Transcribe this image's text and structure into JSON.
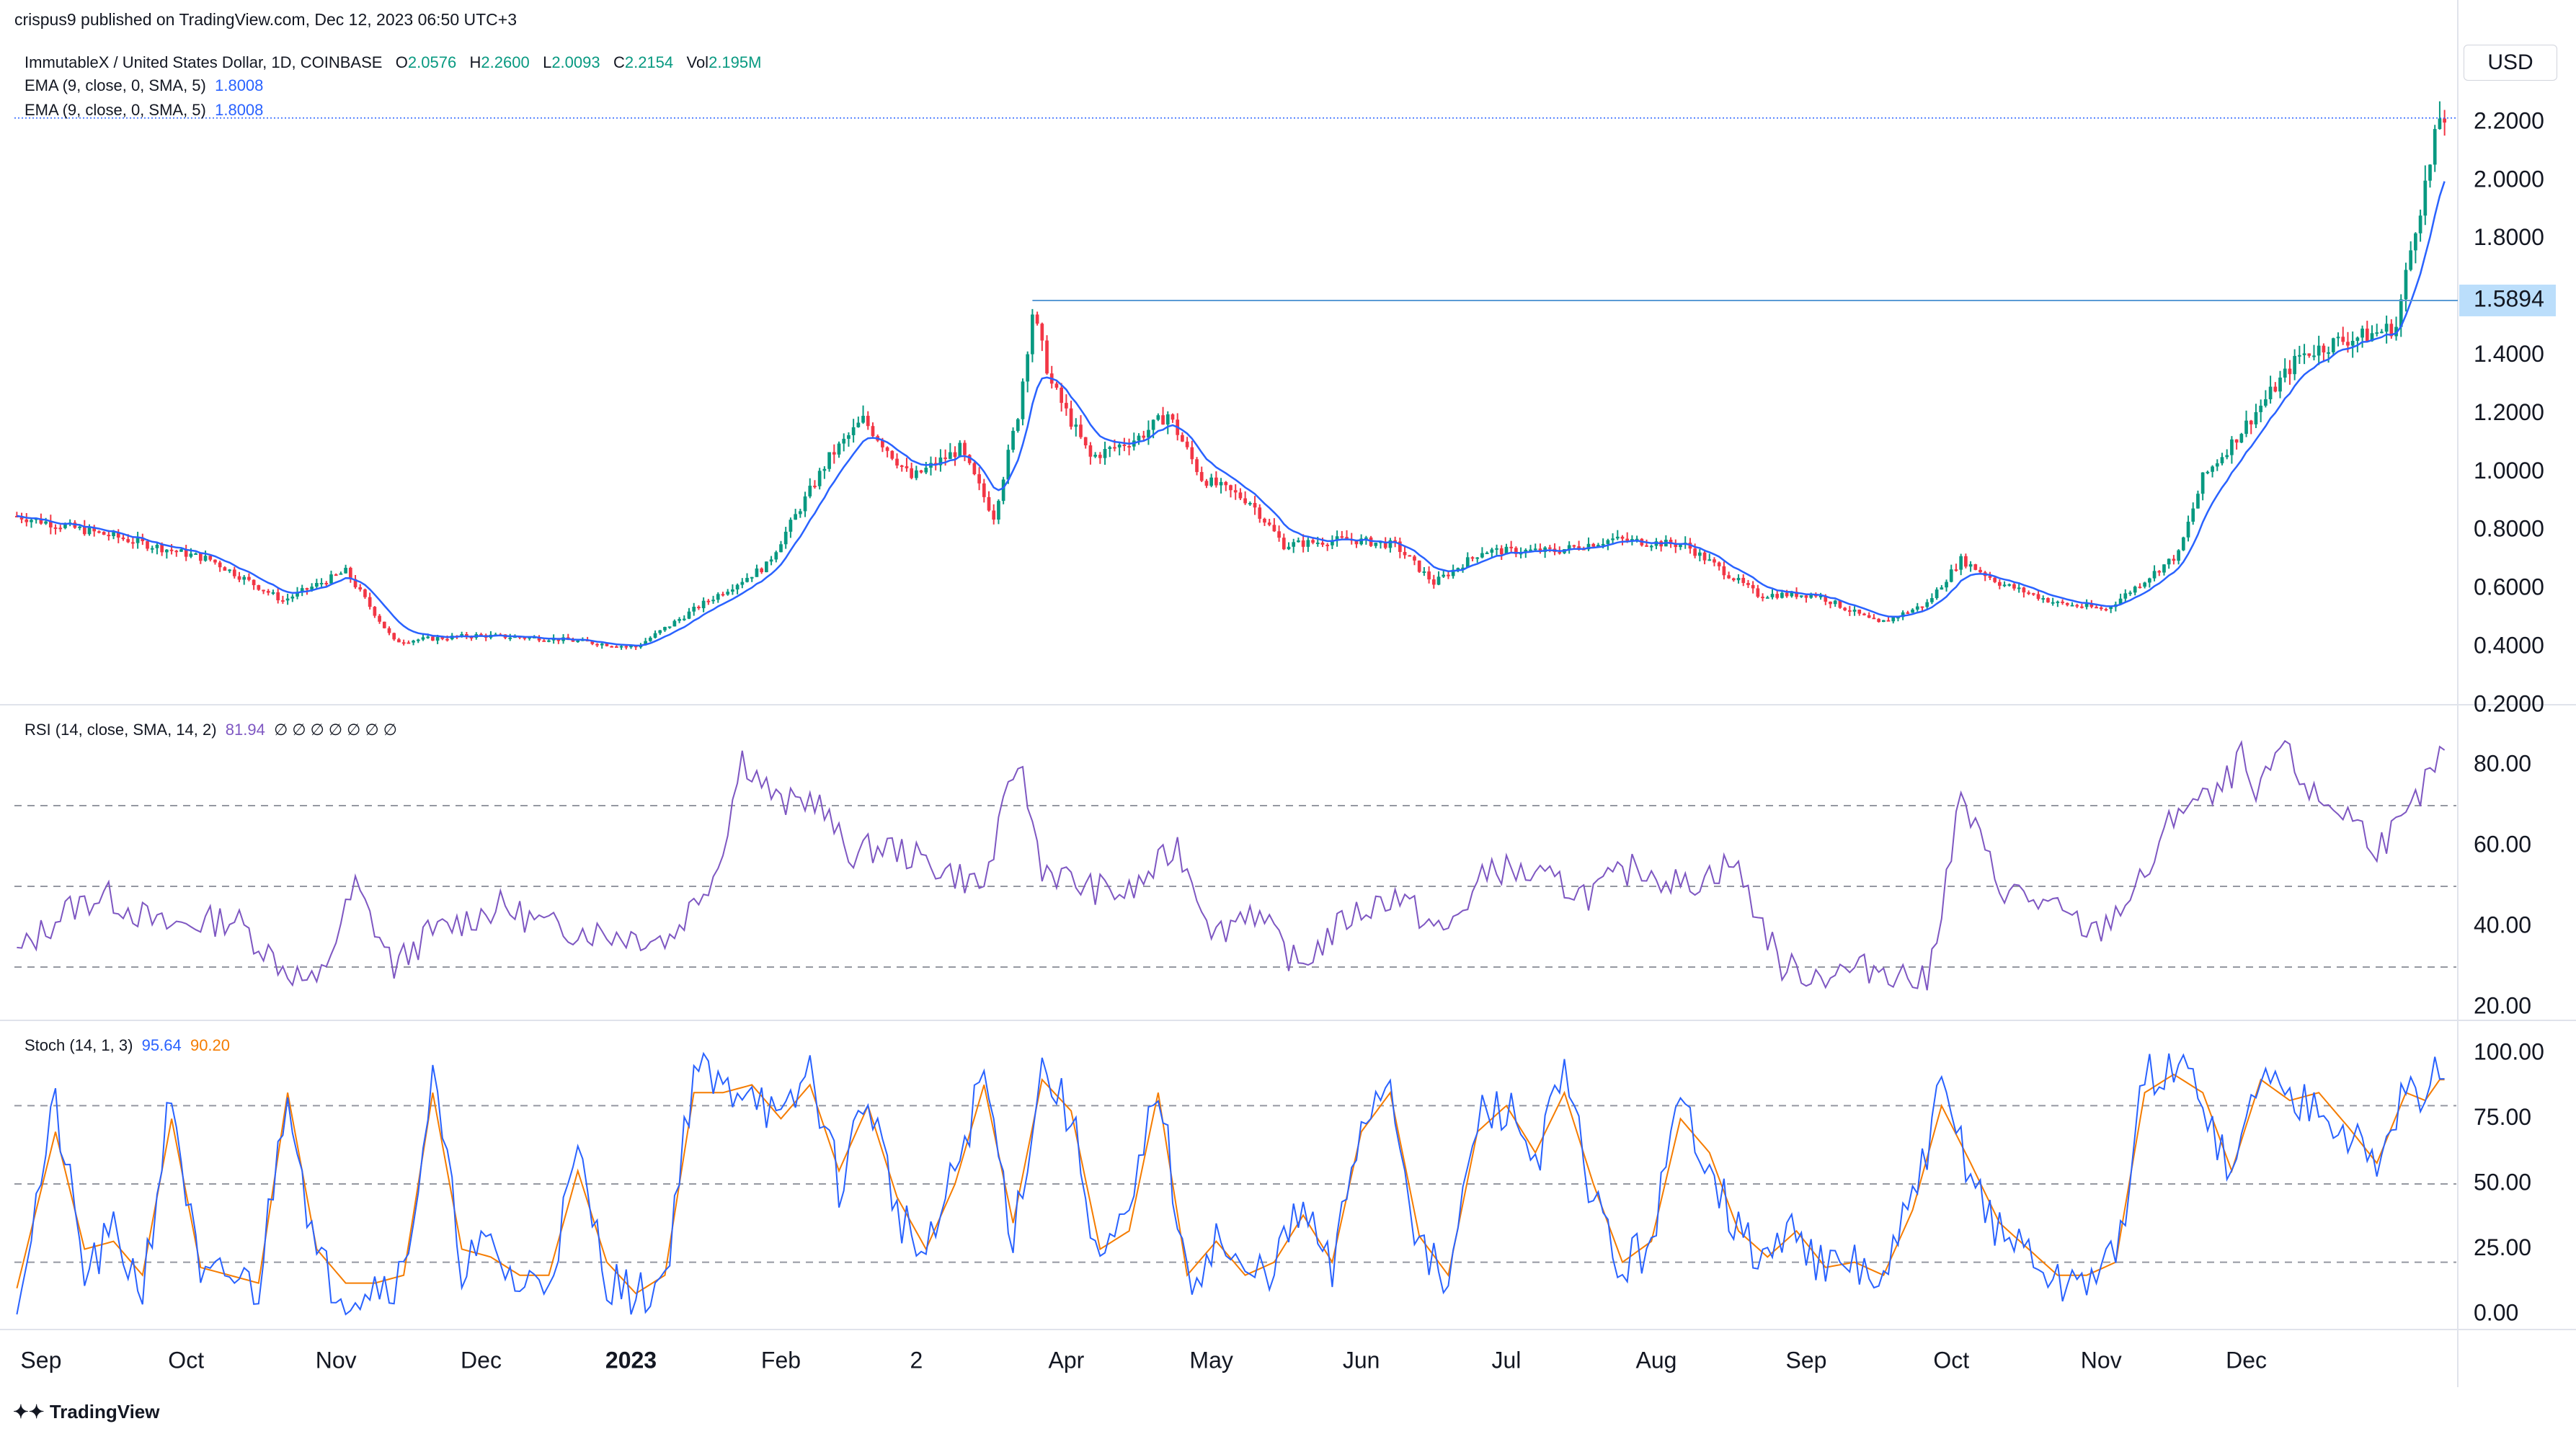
{
  "header": {
    "published": "crispus9 published on TradingView.com, Dec 12, 2023 06:50 UTC+3",
    "symbol": "ImmutableX / United States Dollar, 1D, COINBASE",
    "o_label": "O",
    "o_value": "2.0576",
    "h_label": "H",
    "h_value": "2.2600",
    "l_label": "L",
    "l_value": "2.0093",
    "c_label": "C",
    "c_value": "2.2154",
    "vol_label": "Vol",
    "vol_value": "2.195M",
    "ema1_label": "EMA (9, close, 0, SMA, 5)",
    "ema1_value": "1.8008",
    "ema2_label": "EMA (9, close, 0, SMA, 5)",
    "ema2_value": "1.8008"
  },
  "currency_button": "USD",
  "rsi_header": {
    "label": "RSI (14, close, SMA, 14, 2)",
    "value": "81.94",
    "na": "∅ ∅ ∅ ∅ ∅ ∅ ∅"
  },
  "stoch_header": {
    "label": "Stoch (14, 1, 3)",
    "k_value": "95.64",
    "d_value": "90.20"
  },
  "brand": "TradingView",
  "colors": {
    "up": "#089981",
    "down": "#f23645",
    "ema": "#2962ff",
    "rsi": "#7e57c2",
    "stoch_k": "#2962ff",
    "stoch_d": "#f57c00",
    "level_line": "#5b9bd5",
    "level_badge": "#bbdefb"
  },
  "chart_data": [
    {
      "type": "candlestick",
      "title": "ImmutableX / United States Dollar, 1D, COINBASE",
      "ylim": [
        0.2,
        2.3
      ],
      "y_ticks": [
        "2.2000",
        "2.0000",
        "1.8000",
        "1.4000",
        "1.2000",
        "1.0000",
        "0.8000",
        "0.6000",
        "0.4000",
        "0.2000"
      ],
      "y_tick_values": [
        2.2,
        2.0,
        1.8,
        1.4,
        1.2,
        1.0,
        0.8,
        0.6,
        0.4,
        0.2
      ],
      "x_labels": [
        "Sep",
        "Oct",
        "Nov",
        "Dec",
        "2023",
        "Feb",
        "2",
        "Apr",
        "May",
        "Jun",
        "Jul",
        "Aug",
        "Sep",
        "Oct",
        "Nov",
        "Dec"
      ],
      "x_label_index": [
        5,
        35,
        66,
        96,
        127,
        158,
        186,
        217,
        247,
        278,
        308,
        339,
        370,
        400,
        431,
        461
      ],
      "horizontal_level": 1.5894,
      "horizontal_level_label": "1.5894",
      "close_keypoints": [
        [
          0,
          0.85
        ],
        [
          20,
          0.78
        ],
        [
          40,
          0.7
        ],
        [
          55,
          0.56
        ],
        [
          68,
          0.66
        ],
        [
          78,
          0.42
        ],
        [
          95,
          0.44
        ],
        [
          110,
          0.43
        ],
        [
          128,
          0.4
        ],
        [
          142,
          0.55
        ],
        [
          155,
          0.68
        ],
        [
          168,
          1.05
        ],
        [
          175,
          1.18
        ],
        [
          185,
          0.98
        ],
        [
          195,
          1.08
        ],
        [
          202,
          0.85
        ],
        [
          207,
          1.2
        ],
        [
          210,
          1.55
        ],
        [
          214,
          1.3
        ],
        [
          222,
          1.05
        ],
        [
          232,
          1.12
        ],
        [
          238,
          1.2
        ],
        [
          245,
          0.98
        ],
        [
          255,
          0.9
        ],
        [
          262,
          0.75
        ],
        [
          275,
          0.77
        ],
        [
          285,
          0.75
        ],
        [
          293,
          0.62
        ],
        [
          303,
          0.73
        ],
        [
          318,
          0.73
        ],
        [
          330,
          0.77
        ],
        [
          345,
          0.75
        ],
        [
          360,
          0.58
        ],
        [
          372,
          0.58
        ],
        [
          385,
          0.48
        ],
        [
          395,
          0.55
        ],
        [
          402,
          0.7
        ],
        [
          410,
          0.62
        ],
        [
          422,
          0.55
        ],
        [
          432,
          0.53
        ],
        [
          440,
          0.63
        ],
        [
          447,
          0.72
        ],
        [
          452,
          0.98
        ],
        [
          458,
          1.1
        ],
        [
          465,
          1.25
        ],
        [
          472,
          1.4
        ],
        [
          480,
          1.45
        ],
        [
          486,
          1.47
        ],
        [
          492,
          1.5
        ],
        [
          496,
          1.85
        ],
        [
          499,
          2.05
        ],
        [
          501,
          2.22
        ]
      ]
    },
    {
      "type": "line",
      "name": "RSI (14, close, SMA, 14, 2)",
      "ylim": [
        15,
        90
      ],
      "y_ticks": [
        "80.00",
        "60.00",
        "40.00",
        "20.00"
      ],
      "y_tick_values": [
        80,
        60,
        40,
        20
      ],
      "bands": [
        70,
        50,
        30
      ],
      "keypoints": [
        [
          0,
          33
        ],
        [
          10,
          44
        ],
        [
          18,
          48
        ],
        [
          30,
          40
        ],
        [
          45,
          42
        ],
        [
          55,
          30
        ],
        [
          62,
          25
        ],
        [
          70,
          50
        ],
        [
          78,
          30
        ],
        [
          85,
          38
        ],
        [
          100,
          45
        ],
        [
          110,
          40
        ],
        [
          125,
          38
        ],
        [
          135,
          37
        ],
        [
          145,
          55
        ],
        [
          150,
          82
        ],
        [
          158,
          70
        ],
        [
          165,
          72
        ],
        [
          172,
          58
        ],
        [
          180,
          60
        ],
        [
          190,
          55
        ],
        [
          200,
          50
        ],
        [
          207,
          82
        ],
        [
          212,
          55
        ],
        [
          220,
          50
        ],
        [
          230,
          48
        ],
        [
          240,
          60
        ],
        [
          248,
          38
        ],
        [
          255,
          45
        ],
        [
          265,
          30
        ],
        [
          275,
          42
        ],
        [
          285,
          48
        ],
        [
          295,
          38
        ],
        [
          305,
          55
        ],
        [
          315,
          52
        ],
        [
          325,
          48
        ],
        [
          335,
          55
        ],
        [
          345,
          50
        ],
        [
          355,
          56
        ],
        [
          365,
          30
        ],
        [
          372,
          28
        ],
        [
          385,
          30
        ],
        [
          395,
          26
        ],
        [
          402,
          72
        ],
        [
          410,
          50
        ],
        [
          420,
          45
        ],
        [
          430,
          38
        ],
        [
          440,
          52
        ],
        [
          447,
          70
        ],
        [
          455,
          72
        ],
        [
          460,
          82
        ],
        [
          463,
          70
        ],
        [
          468,
          85
        ],
        [
          475,
          72
        ],
        [
          482,
          68
        ],
        [
          488,
          60
        ],
        [
          494,
          66
        ],
        [
          498,
          75
        ],
        [
          501,
          82
        ]
      ]
    },
    {
      "type": "line",
      "name": "Stoch (14, 1, 3)",
      "ylim": [
        -5,
        100
      ],
      "y_ticks": [
        "100.00",
        "75.00",
        "50.00",
        "25.00",
        "0.00"
      ],
      "y_tick_values": [
        100,
        75,
        50,
        25,
        0
      ],
      "bands": [
        80,
        50,
        20
      ],
      "series": [
        {
          "name": "%K",
          "color": "#2962ff"
        },
        {
          "name": "%D",
          "color": "#f57c00"
        }
      ],
      "k_keypoints": [
        [
          0,
          5
        ],
        [
          8,
          80
        ],
        [
          14,
          15
        ],
        [
          20,
          30
        ],
        [
          26,
          10
        ],
        [
          32,
          85
        ],
        [
          38,
          10
        ],
        [
          44,
          15
        ],
        [
          50,
          10
        ],
        [
          56,
          90
        ],
        [
          62,
          20
        ],
        [
          68,
          8
        ],
        [
          74,
          12
        ],
        [
          80,
          15
        ],
        [
          86,
          90
        ],
        [
          92,
          20
        ],
        [
          98,
          25
        ],
        [
          104,
          10
        ],
        [
          110,
          15
        ],
        [
          116,
          60
        ],
        [
          122,
          15
        ],
        [
          128,
          5
        ],
        [
          134,
          15
        ],
        [
          140,
          95
        ],
        [
          146,
          85
        ],
        [
          152,
          90
        ],
        [
          158,
          70
        ],
        [
          164,
          95
        ],
        [
          170,
          50
        ],
        [
          176,
          85
        ],
        [
          182,
          40
        ],
        [
          188,
          20
        ],
        [
          194,
          55
        ],
        [
          200,
          92
        ],
        [
          206,
          30
        ],
        [
          212,
          95
        ],
        [
          218,
          75
        ],
        [
          224,
          20
        ],
        [
          230,
          35
        ],
        [
          236,
          90
        ],
        [
          242,
          10
        ],
        [
          248,
          30
        ],
        [
          254,
          12
        ],
        [
          260,
          20
        ],
        [
          266,
          40
        ],
        [
          272,
          15
        ],
        [
          278,
          75
        ],
        [
          284,
          90
        ],
        [
          290,
          25
        ],
        [
          296,
          10
        ],
        [
          302,
          75
        ],
        [
          308,
          80
        ],
        [
          314,
          60
        ],
        [
          320,
          90
        ],
        [
          326,
          45
        ],
        [
          332,
          15
        ],
        [
          338,
          30
        ],
        [
          344,
          80
        ],
        [
          350,
          60
        ],
        [
          356,
          30
        ],
        [
          362,
          20
        ],
        [
          368,
          35
        ],
        [
          374,
          15
        ],
        [
          380,
          20
        ],
        [
          386,
          10
        ],
        [
          392,
          45
        ],
        [
          398,
          85
        ],
        [
          404,
          55
        ],
        [
          410,
          30
        ],
        [
          416,
          25
        ],
        [
          422,
          10
        ],
        [
          428,
          15
        ],
        [
          434,
          20
        ],
        [
          440,
          90
        ],
        [
          446,
          95
        ],
        [
          452,
          85
        ],
        [
          458,
          50
        ],
        [
          464,
          95
        ],
        [
          470,
          80
        ],
        [
          476,
          85
        ],
        [
          482,
          70
        ],
        [
          488,
          55
        ],
        [
          494,
          90
        ],
        [
          498,
          80
        ],
        [
          501,
          95
        ]
      ],
      "d_keypoints": [
        [
          0,
          10
        ],
        [
          8,
          70
        ],
        [
          14,
          25
        ],
        [
          20,
          28
        ],
        [
          26,
          15
        ],
        [
          32,
          75
        ],
        [
          38,
          18
        ],
        [
          44,
          15
        ],
        [
          50,
          12
        ],
        [
          56,
          85
        ],
        [
          62,
          25
        ],
        [
          68,
          12
        ],
        [
          74,
          12
        ],
        [
          80,
          15
        ],
        [
          86,
          85
        ],
        [
          92,
          25
        ],
        [
          98,
          22
        ],
        [
          104,
          15
        ],
        [
          110,
          15
        ],
        [
          116,
          55
        ],
        [
          122,
          20
        ],
        [
          128,
          8
        ],
        [
          134,
          15
        ],
        [
          140,
          85
        ],
        [
          146,
          85
        ],
        [
          152,
          88
        ],
        [
          158,
          75
        ],
        [
          164,
          88
        ],
        [
          170,
          55
        ],
        [
          176,
          80
        ],
        [
          182,
          45
        ],
        [
          188,
          25
        ],
        [
          194,
          50
        ],
        [
          200,
          88
        ],
        [
          206,
          35
        ],
        [
          212,
          90
        ],
        [
          218,
          78
        ],
        [
          224,
          25
        ],
        [
          230,
          32
        ],
        [
          236,
          85
        ],
        [
          242,
          15
        ],
        [
          248,
          28
        ],
        [
          254,
          15
        ],
        [
          260,
          20
        ],
        [
          266,
          38
        ],
        [
          272,
          20
        ],
        [
          278,
          70
        ],
        [
          284,
          85
        ],
        [
          290,
          30
        ],
        [
          296,
          15
        ],
        [
          302,
          70
        ],
        [
          308,
          80
        ],
        [
          314,
          62
        ],
        [
          320,
          85
        ],
        [
          326,
          50
        ],
        [
          332,
          20
        ],
        [
          338,
          28
        ],
        [
          344,
          75
        ],
        [
          350,
          62
        ],
        [
          356,
          32
        ],
        [
          362,
          22
        ],
        [
          368,
          32
        ],
        [
          374,
          18
        ],
        [
          380,
          20
        ],
        [
          386,
          15
        ],
        [
          392,
          40
        ],
        [
          398,
          80
        ],
        [
          404,
          58
        ],
        [
          410,
          35
        ],
        [
          416,
          25
        ],
        [
          422,
          15
        ],
        [
          428,
          15
        ],
        [
          434,
          20
        ],
        [
          440,
          85
        ],
        [
          446,
          92
        ],
        [
          452,
          85
        ],
        [
          458,
          55
        ],
        [
          464,
          90
        ],
        [
          470,
          82
        ],
        [
          476,
          85
        ],
        [
          482,
          72
        ],
        [
          488,
          58
        ],
        [
          494,
          85
        ],
        [
          498,
          82
        ],
        [
          501,
          90
        ]
      ]
    }
  ]
}
